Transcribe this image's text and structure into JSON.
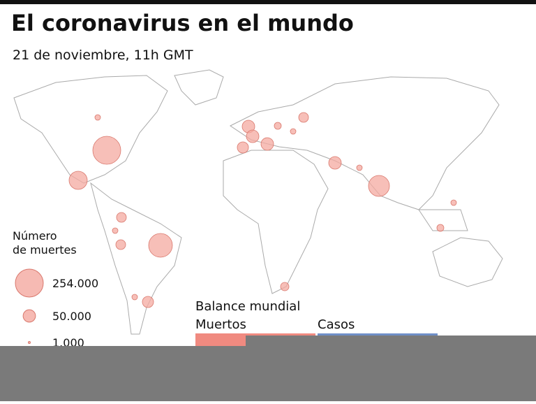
{
  "header": {
    "title": "El coronavirus en el mundo",
    "subtitle": "21 de noviembre, 11h GMT"
  },
  "legend": {
    "title_lines": [
      "Número",
      "de muertes"
    ],
    "color": "#f4a9a0",
    "items": [
      {
        "value": 254000,
        "label": "254.000"
      },
      {
        "value": 50000,
        "label": "50.000"
      },
      {
        "value": 1000,
        "label": "1.000"
      }
    ]
  },
  "balance": {
    "title": "Balance mundial",
    "deaths_label": "Muertos",
    "cases_label": "Casos"
  }
}
